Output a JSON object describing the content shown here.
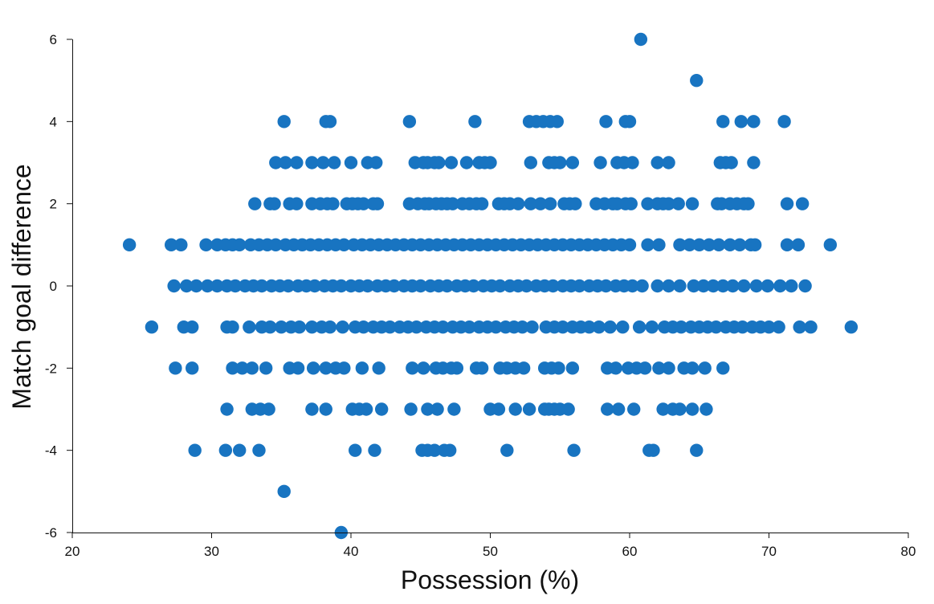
{
  "chart_data": {
    "type": "scatter",
    "xlabel": "Possession (%)",
    "ylabel": "Match goal difference",
    "xlim": [
      20,
      80
    ],
    "ylim": [
      -6,
      6
    ],
    "xticks": [
      20,
      30,
      40,
      50,
      60,
      70,
      80
    ],
    "yticks": [
      -6,
      -4,
      -2,
      0,
      2,
      4,
      6
    ],
    "grid": false,
    "marker_color": "#1874c1",
    "rows": [
      {
        "y": 6,
        "x": [
          60.8
        ]
      },
      {
        "y": 5,
        "x": [
          64.8
        ]
      },
      {
        "y": 4,
        "x": [
          35.2,
          38.2,
          38.5,
          44.2,
          48.9,
          52.8,
          53.3,
          53.8,
          54.3,
          54.8,
          58.3,
          59.7,
          60.0,
          66.7,
          68.0,
          68.9,
          71.1
        ]
      },
      {
        "y": 3,
        "x": [
          34.6,
          35.3,
          36.1,
          37.2,
          38.0,
          38.8,
          40.0,
          41.2,
          41.8,
          44.6,
          45.2,
          45.5,
          46.0,
          46.3,
          47.2,
          48.3,
          49.2,
          49.6,
          50.0,
          52.9,
          54.2,
          54.6,
          55.0,
          55.9,
          57.9,
          59.1,
          59.6,
          60.2,
          62.0,
          62.8,
          66.5,
          66.9,
          67.3,
          68.9
        ]
      },
      {
        "y": 2,
        "x": [
          33.1,
          34.2,
          34.5,
          35.6,
          36.1,
          37.2,
          37.8,
          38.3,
          38.7,
          39.7,
          40.1,
          40.5,
          40.9,
          41.6,
          41.9,
          44.2,
          44.8,
          45.3,
          45.6,
          46.1,
          46.5,
          46.9,
          47.3,
          48.0,
          48.5,
          49.0,
          49.4,
          50.6,
          51.0,
          51.4,
          52.0,
          52.9,
          53.6,
          54.3,
          55.3,
          55.7,
          56.1,
          57.6,
          58.2,
          58.8,
          59.1,
          59.7,
          60.1,
          61.3,
          62.0,
          62.4,
          62.8,
          63.5,
          64.5,
          66.3,
          66.6,
          67.2,
          67.7,
          68.2,
          68.5,
          71.3,
          72.4
        ]
      },
      {
        "y": 1,
        "x": [
          24.1,
          27.1,
          27.8,
          29.6,
          30.4,
          31.0,
          31.5,
          32.0,
          32.8,
          33.4,
          34.0,
          34.6,
          35.3,
          35.9,
          36.5,
          37.1,
          37.7,
          38.3,
          38.9,
          39.5,
          40.2,
          40.8,
          41.4,
          42.0,
          42.6,
          43.2,
          43.8,
          44.4,
          45.0,
          45.6,
          46.2,
          46.8,
          47.4,
          48.0,
          48.6,
          49.2,
          49.8,
          50.4,
          51.0,
          51.6,
          52.2,
          52.8,
          53.4,
          54.0,
          54.6,
          55.2,
          55.8,
          56.4,
          57.0,
          57.6,
          58.2,
          58.8,
          59.4,
          60.0,
          61.3,
          62.1,
          63.6,
          64.3,
          65.0,
          65.7,
          66.4,
          67.2,
          67.9,
          68.7,
          69.0,
          71.3,
          72.1,
          74.4
        ]
      },
      {
        "y": 0,
        "x": [
          27.3,
          28.2,
          28.9,
          29.7,
          30.4,
          31.1,
          31.7,
          32.4,
          33.0,
          33.6,
          34.3,
          34.9,
          35.5,
          36.2,
          36.8,
          37.4,
          38.1,
          38.7,
          39.3,
          40.0,
          40.6,
          41.2,
          41.9,
          42.5,
          43.1,
          43.8,
          44.4,
          45.0,
          45.7,
          46.3,
          46.9,
          47.6,
          48.2,
          48.8,
          49.5,
          50.1,
          50.7,
          51.4,
          52.0,
          52.6,
          53.3,
          53.9,
          54.5,
          55.2,
          55.8,
          56.4,
          57.1,
          57.7,
          58.3,
          59.0,
          59.6,
          60.2,
          60.9,
          62.0,
          62.8,
          63.6,
          64.6,
          65.3,
          66.0,
          66.7,
          67.4,
          68.2,
          69.1,
          69.9,
          70.8,
          71.6,
          72.6
        ]
      },
      {
        "y": -1,
        "x": [
          25.7,
          28.0,
          28.6,
          31.1,
          31.5,
          32.7,
          33.6,
          34.2,
          35.0,
          35.7,
          36.3,
          37.2,
          37.9,
          38.5,
          39.4,
          40.3,
          40.9,
          41.6,
          42.2,
          42.8,
          43.5,
          44.1,
          44.7,
          45.4,
          46.0,
          46.6,
          47.3,
          47.9,
          48.5,
          49.2,
          49.8,
          50.4,
          51.1,
          51.7,
          52.3,
          53.0,
          54.0,
          54.6,
          55.2,
          55.9,
          56.5,
          57.1,
          57.8,
          58.6,
          59.5,
          60.7,
          61.6,
          62.5,
          63.1,
          63.7,
          64.4,
          65.0,
          65.6,
          66.2,
          66.9,
          67.5,
          68.1,
          68.8,
          69.4,
          70.0,
          70.7,
          72.2,
          73.0,
          75.9
        ]
      },
      {
        "y": -2,
        "x": [
          27.4,
          28.6,
          31.5,
          32.2,
          32.9,
          33.9,
          35.6,
          36.2,
          37.3,
          38.2,
          38.9,
          39.5,
          40.8,
          42.0,
          44.4,
          45.2,
          46.1,
          46.6,
          47.2,
          47.6,
          49.0,
          49.4,
          50.7,
          51.2,
          51.8,
          52.4,
          53.9,
          54.4,
          54.9,
          55.9,
          58.4,
          59.0,
          59.9,
          60.5,
          61.1,
          62.1,
          62.8,
          63.9,
          64.5,
          65.4,
          66.7
        ]
      },
      {
        "y": -3,
        "x": [
          31.1,
          32.9,
          33.5,
          34.1,
          37.2,
          38.2,
          40.1,
          40.6,
          41.1,
          42.2,
          44.3,
          45.5,
          46.2,
          47.4,
          50.0,
          50.6,
          51.8,
          52.8,
          53.9,
          54.2,
          54.6,
          55.0,
          55.6,
          58.4,
          59.2,
          60.3,
          62.4,
          63.1,
          63.6,
          64.5,
          65.5
        ]
      },
      {
        "y": -4,
        "x": [
          28.8,
          31.0,
          32.0,
          33.4,
          40.3,
          41.7,
          45.1,
          45.5,
          46.0,
          46.7,
          47.1,
          51.2,
          56.0,
          61.4,
          61.7,
          64.8
        ]
      },
      {
        "y": -5,
        "x": [
          35.2
        ]
      },
      {
        "y": -6,
        "x": [
          39.3
        ]
      }
    ]
  }
}
